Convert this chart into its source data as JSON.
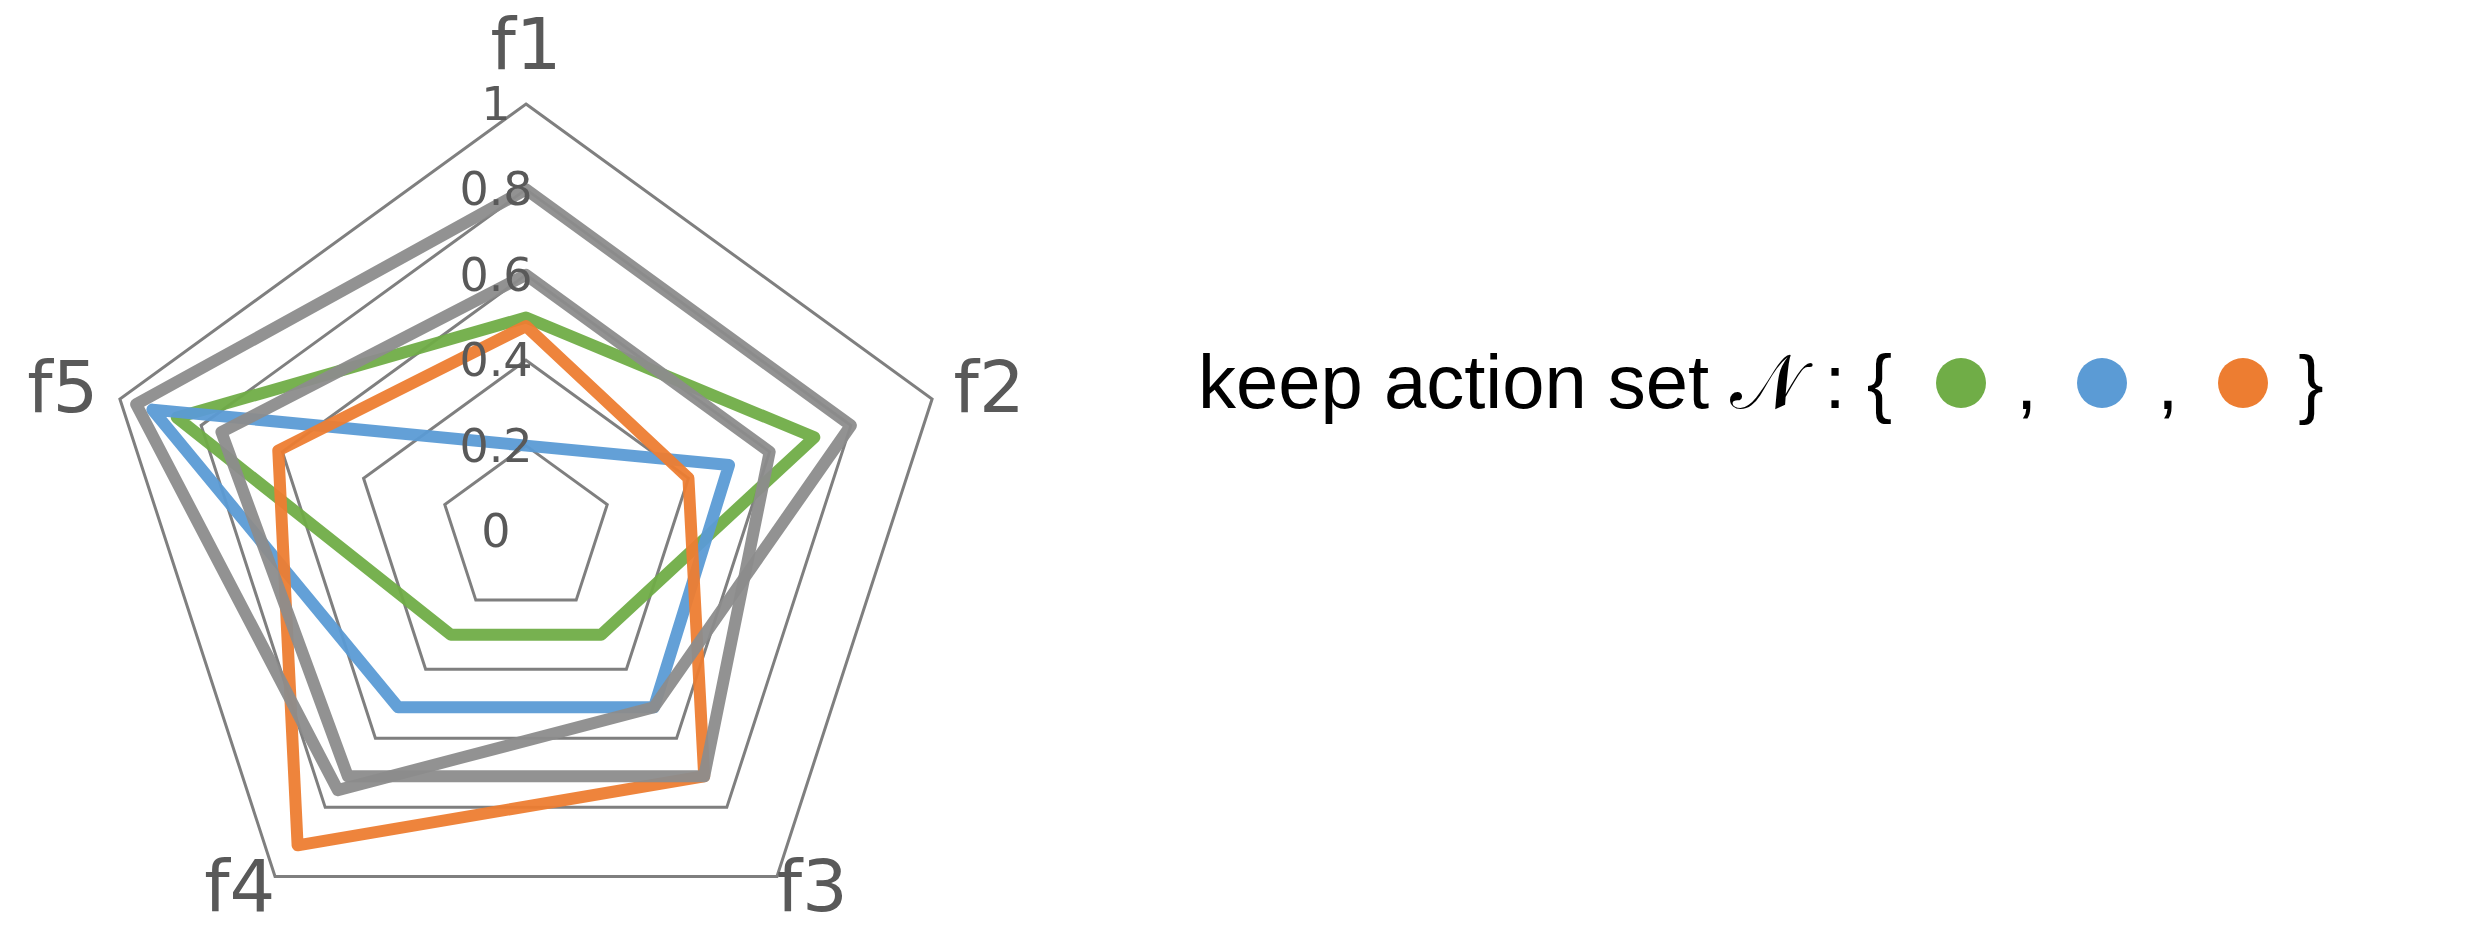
{
  "chart_data": {
    "type": "radar",
    "categories": [
      "f1",
      "f2",
      "f3",
      "f4",
      "f5"
    ],
    "ylim": [
      0,
      1
    ],
    "yticks": [
      0,
      0.2,
      0.4,
      0.6,
      0.8,
      1
    ],
    "legend_title": "keep action set 𝒩 : {",
    "annotations": [
      ",",
      ",",
      "}"
    ],
    "series": [
      {
        "color": "#70ad47",
        "values": [
          0.5,
          0.71,
          0.3,
          0.3,
          0.86
        ]
      },
      {
        "color": "#5b9bd5",
        "values": [
          0.2,
          0.5,
          0.51,
          0.51,
          0.92
        ]
      },
      {
        "color": "#ed7d31",
        "values": [
          0.48,
          0.4,
          0.71,
          0.91,
          0.61
        ]
      },
      {
        "color": "#8c8c8c",
        "values": [
          0.8,
          0.8,
          0.51,
          0.75,
          0.96
        ]
      },
      {
        "color": "#8c8c8c",
        "values": [
          0.6,
          0.6,
          0.71,
          0.71,
          0.75
        ]
      }
    ]
  }
}
